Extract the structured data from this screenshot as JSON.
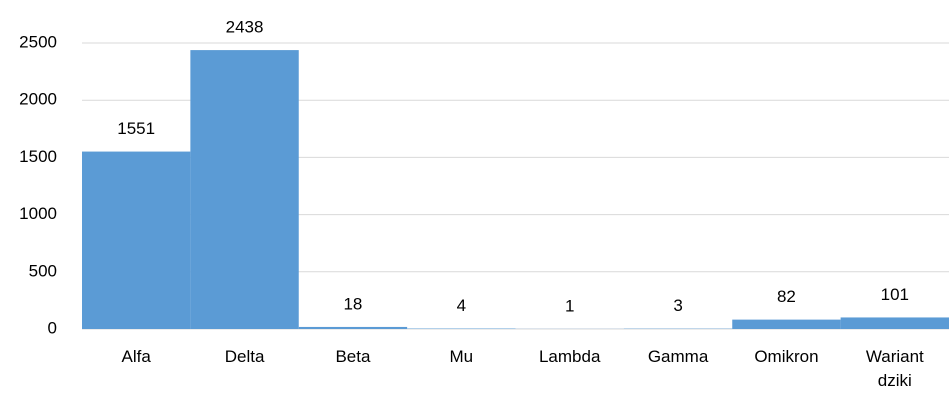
{
  "chart_data": {
    "type": "bar",
    "categories": [
      "Alfa",
      "Delta",
      "Beta",
      "Mu",
      "Lambda",
      "Gamma",
      "Omikron",
      "Wariant dziki"
    ],
    "values": [
      1551,
      2438,
      18,
      4,
      1,
      3,
      82,
      101
    ],
    "color": "#5b9bd5",
    "ylim": [
      0,
      2500
    ],
    "yticks": [
      0,
      500,
      1000,
      1500,
      2000,
      2500
    ],
    "grid": true
  }
}
